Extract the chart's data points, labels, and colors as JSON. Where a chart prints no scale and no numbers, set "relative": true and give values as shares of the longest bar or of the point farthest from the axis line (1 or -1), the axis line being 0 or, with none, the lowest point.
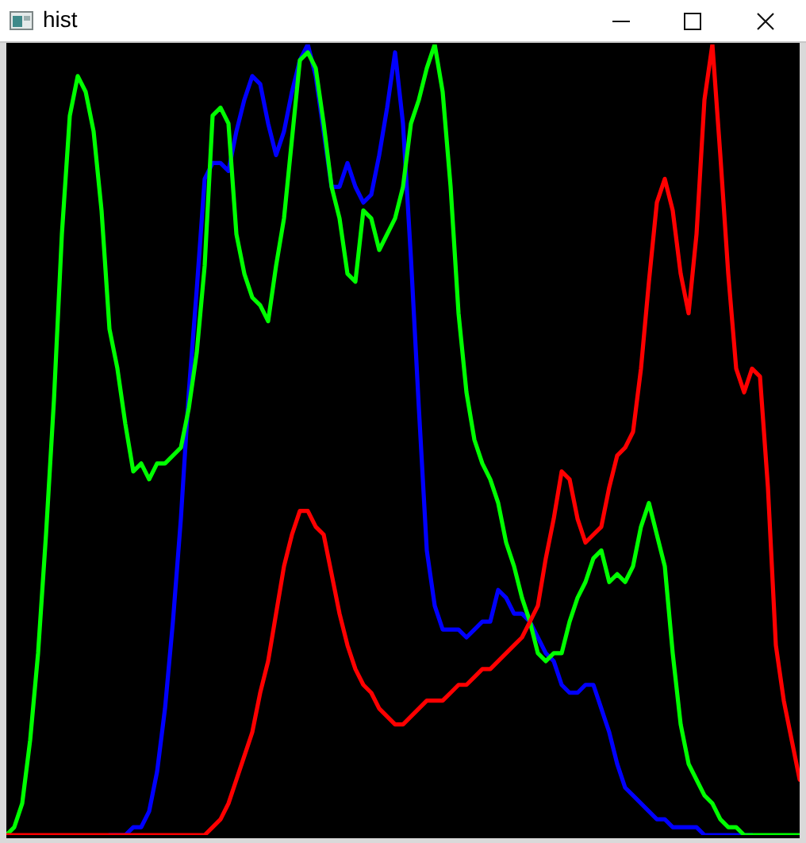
{
  "chart_data": {
    "type": "line",
    "title": "hist",
    "relative": true,
    "categories": [
      null,
      null,
      null,
      null,
      null,
      null,
      null,
      null,
      null,
      null,
      null,
      null,
      null,
      null,
      null,
      null,
      null,
      null,
      null,
      null,
      null,
      null,
      null,
      null,
      null,
      null,
      null,
      null,
      null,
      null,
      null,
      null,
      null,
      null,
      null,
      null,
      null,
      null,
      null,
      null,
      null,
      null,
      null,
      null,
      null,
      null,
      null,
      null,
      null,
      null,
      null,
      null,
      null,
      null,
      null,
      null,
      null,
      null,
      null,
      null,
      null,
      null,
      null,
      null,
      null,
      null,
      null,
      null,
      null,
      null,
      null,
      null,
      null,
      null,
      null,
      null,
      null,
      null,
      null,
      null,
      null,
      null,
      null,
      null,
      null,
      null,
      null,
      null,
      null,
      null,
      null,
      null,
      null,
      null,
      null,
      null,
      null,
      null,
      null,
      null,
      null
    ],
    "series": [
      {
        "color": "#0000ff",
        "values": [
          null,
          null,
          null,
          null,
          null,
          null,
          null,
          null,
          null,
          null,
          null,
          null,
          null,
          0,
          0,
          0,
          0.01,
          0.01,
          0.03,
          0.08,
          0.16,
          0.27,
          0.4,
          0.56,
          0.69,
          0.83,
          0.85,
          0.85,
          0.84,
          0.89,
          0.93,
          0.96,
          0.95,
          0.9,
          0.86,
          0.89,
          0.94,
          0.98,
          1.0,
          0.96,
          0.89,
          0.82,
          0.82,
          0.85,
          0.82,
          0.8,
          0.81,
          0.86,
          0.92,
          0.99,
          0.9,
          0.73,
          0.54,
          0.36,
          0.29,
          0.26,
          0.26,
          0.26,
          0.25,
          0.26,
          0.27,
          0.27,
          0.31,
          0.3,
          0.28,
          0.28,
          0.27,
          0.25,
          0.23,
          0.22,
          0.19,
          0.18,
          0.18,
          0.19,
          0.19,
          0.16,
          0.13,
          0.09,
          0.06,
          0.05,
          0.04,
          0.03,
          0.02,
          0.02,
          0.01,
          0.01,
          0.01,
          0.01,
          0,
          0,
          0,
          0,
          0,
          0,
          0,
          null,
          null,
          null,
          null,
          null,
          null
        ]
      },
      {
        "color": "#00ff00",
        "values": [
          0,
          0.01,
          0.04,
          0.12,
          0.23,
          0.38,
          0.55,
          0.76,
          0.91,
          0.96,
          0.94,
          0.89,
          0.79,
          0.64,
          0.59,
          0.52,
          0.46,
          0.47,
          0.45,
          0.47,
          0.47,
          0.48,
          0.49,
          0.54,
          0.61,
          0.72,
          0.91,
          0.92,
          0.9,
          0.76,
          0.71,
          0.68,
          0.67,
          0.65,
          0.72,
          0.78,
          0.88,
          0.98,
          0.99,
          0.97,
          0.9,
          0.82,
          0.78,
          0.71,
          0.7,
          0.79,
          0.78,
          0.74,
          0.76,
          0.78,
          0.82,
          0.9,
          0.93,
          0.97,
          1.0,
          0.94,
          0.82,
          0.66,
          0.56,
          0.5,
          0.47,
          0.45,
          0.42,
          0.37,
          0.34,
          0.3,
          0.27,
          0.23,
          0.22,
          0.23,
          0.23,
          0.27,
          0.3,
          0.32,
          0.35,
          0.36,
          0.32,
          0.33,
          0.32,
          0.34,
          0.39,
          0.42,
          0.38,
          0.34,
          0.23,
          0.14,
          0.09,
          0.07,
          0.05,
          0.04,
          0.02,
          0.01,
          0.01,
          0,
          0,
          0,
          0,
          0,
          0,
          0,
          0
        ]
      },
      {
        "color": "#ff0000",
        "values": [
          0,
          0,
          0,
          0,
          0,
          0,
          0,
          0,
          0,
          0,
          0,
          0,
          0,
          0,
          0,
          0,
          0,
          0,
          0,
          0,
          0,
          0,
          0,
          0,
          0,
          0,
          0.01,
          0.02,
          0.04,
          0.07,
          0.1,
          0.13,
          0.18,
          0.22,
          0.28,
          0.34,
          0.38,
          0.41,
          0.41,
          0.39,
          0.38,
          0.33,
          0.28,
          0.24,
          0.21,
          0.19,
          0.18,
          0.16,
          0.15,
          0.14,
          0.14,
          0.15,
          0.16,
          0.17,
          0.17,
          0.17,
          0.18,
          0.19,
          0.19,
          0.2,
          0.21,
          0.21,
          0.22,
          0.23,
          0.24,
          0.25,
          0.27,
          0.29,
          0.35,
          0.4,
          0.46,
          0.45,
          0.4,
          0.37,
          0.38,
          0.39,
          0.44,
          0.48,
          0.49,
          0.51,
          0.59,
          0.7,
          0.8,
          0.83,
          0.79,
          0.71,
          0.66,
          0.76,
          0.93,
          1.0,
          0.86,
          0.71,
          0.59,
          0.56,
          0.59,
          0.58,
          0.44,
          0.24,
          0.17,
          0.12,
          0.07
        ]
      }
    ]
  }
}
